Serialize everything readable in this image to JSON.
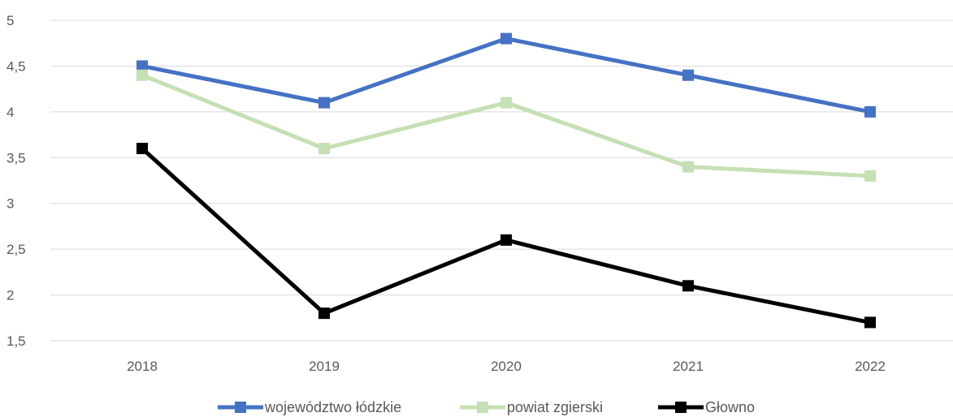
{
  "chart_data": {
    "type": "line",
    "categories": [
      "2018",
      "2019",
      "2020",
      "2021",
      "2022"
    ],
    "y_ticks": [
      "1,5",
      "2",
      "2,5",
      "3",
      "3,5",
      "4",
      "4,5",
      "5"
    ],
    "y_tick_values": [
      1.5,
      2,
      2.5,
      3,
      3.5,
      4,
      4.5,
      5
    ],
    "ylim": [
      1.5,
      5
    ],
    "grid": true,
    "legend_position": "bottom",
    "series": [
      {
        "name": "województwo łódzkie",
        "color": "#4472c4",
        "values": [
          4.5,
          4.1,
          4.8,
          4.4,
          4.0
        ]
      },
      {
        "name": "powiat zgierski",
        "color": "#c5e0b4",
        "values": [
          4.4,
          3.6,
          4.1,
          3.4,
          3.3
        ]
      },
      {
        "name": "Głowno",
        "color": "#000000",
        "values": [
          3.6,
          1.8,
          2.6,
          2.1,
          1.7
        ]
      }
    ]
  }
}
